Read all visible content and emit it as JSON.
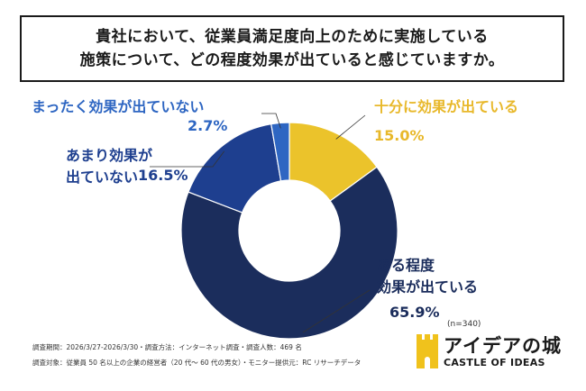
{
  "title": {
    "line1": "貴社において、従業員満足度向上のために実施している",
    "line2": "施策について、どの程度効果が出ていると感じていますか。"
  },
  "chart_data": {
    "type": "pie",
    "variant": "donut",
    "slices": [
      {
        "label_lines": [
          "十分に効果が出ている"
        ],
        "value": 15.0,
        "value_text": "15.0%",
        "color": "#EBC32B",
        "label_color": "#E8B82A"
      },
      {
        "label_lines": [
          "ある程度",
          "効果が出ている"
        ],
        "value": 65.9,
        "value_text": "65.9%",
        "color": "#1B2D5C",
        "label_color": "#1B2D5C"
      },
      {
        "label_lines": [
          "あまり効果が",
          "出ていない"
        ],
        "value": 16.5,
        "value_text": "16.5%",
        "color": "#1E3F8F",
        "label_color": "#1E3F8F"
      },
      {
        "label_lines": [
          "まったく効果が出ていない"
        ],
        "value": 2.7,
        "value_text": "2.7%",
        "color": "#2E66C2",
        "label_color": "#2E66C2"
      }
    ],
    "sample_size": "(n=340)"
  },
  "footer": {
    "line1": "調査期間：2026/3/27-2026/3/30・調査方法：インターネット調査・調査人数：469 名",
    "line2": "調査対象：従業員 50 名以上の企業の経営者（20 代～ 60 代の男女）・モニター提供元：RC リサーチデータ"
  },
  "logo": {
    "jp": "アイデアの城",
    "en": "CASTLE OF IDEAS",
    "color": "#F0C21C"
  }
}
